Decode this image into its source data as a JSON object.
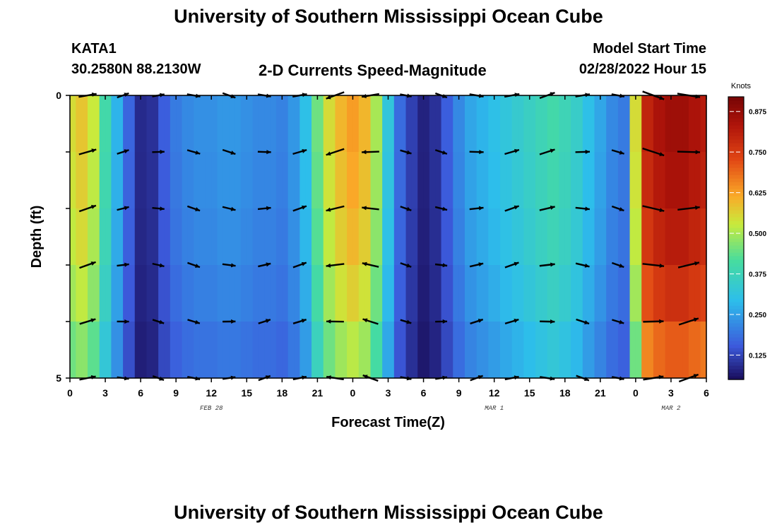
{
  "header": {
    "title": "University of Southern Mississippi Ocean Cube",
    "station": "KATA1",
    "coords": "30.2580N  88.2130W",
    "subtitle": "2-D Currents Speed-Magnitude",
    "model_label": "Model Start Time",
    "model_time": "02/28/2022 Hour 15"
  },
  "footer": {
    "title": "University of Southern Mississippi Ocean Cube"
  },
  "chart_data": {
    "type": "heatmap",
    "title": "2-D Currents Speed-Magnitude",
    "xlabel": "Forecast Time(Z)",
    "ylabel": "Depth (ft)",
    "x_ticks": [
      "0",
      "3",
      "6",
      "9",
      "12",
      "15",
      "18",
      "21",
      "0",
      "3",
      "6",
      "9",
      "12",
      "15",
      "18",
      "21",
      "0",
      "3",
      "6"
    ],
    "x_range_hours": [
      0,
      54
    ],
    "date_labels": [
      {
        "text": "FEB 28",
        "hour": 12
      },
      {
        "text": "MAR 1",
        "hour": 36
      },
      {
        "text": "MAR 2",
        "hour": 51
      }
    ],
    "y_ticks": [
      "0",
      "5"
    ],
    "y_range": [
      0,
      5
    ],
    "depth_levels": [
      0,
      1,
      2,
      3,
      4,
      5
    ],
    "colorbar": {
      "label": "Knots",
      "min": 0.05,
      "max": 0.92,
      "ticks": [
        "0.125",
        "0.250",
        "0.375",
        "0.500",
        "0.625",
        "0.750",
        "0.875"
      ],
      "tick_values": [
        0.125,
        0.25,
        0.375,
        0.5,
        0.625,
        0.75,
        0.875
      ]
    },
    "time_hours": [
      0,
      1,
      2,
      3,
      4,
      5,
      6,
      7,
      8,
      9,
      10,
      11,
      12,
      13,
      14,
      15,
      16,
      17,
      18,
      19,
      20,
      21,
      22,
      23,
      24,
      25,
      26,
      27,
      28,
      29,
      30,
      31,
      32,
      33,
      34,
      35,
      36,
      37,
      38,
      39,
      40,
      41,
      42,
      43,
      44,
      45,
      46,
      47,
      48,
      49,
      50,
      51,
      52,
      53,
      54
    ],
    "speed_profile_knots": [
      0.55,
      0.58,
      0.53,
      0.4,
      0.28,
      0.17,
      0.09,
      0.1,
      0.16,
      0.2,
      0.22,
      0.23,
      0.23,
      0.24,
      0.24,
      0.23,
      0.22,
      0.22,
      0.21,
      0.24,
      0.3,
      0.45,
      0.55,
      0.6,
      0.63,
      0.6,
      0.5,
      0.32,
      0.18,
      0.12,
      0.08,
      0.1,
      0.16,
      0.22,
      0.26,
      0.28,
      0.3,
      0.32,
      0.34,
      0.36,
      0.38,
      0.4,
      0.38,
      0.35,
      0.3,
      0.26,
      0.22,
      0.2,
      0.55,
      0.8,
      0.84,
      0.86,
      0.86,
      0.84,
      0.82
    ],
    "depth_scale": [
      1.0,
      0.98,
      0.95,
      0.9,
      0.82,
      0.72
    ],
    "arrows_note": "Arrows show current direction at each time/depth level"
  }
}
